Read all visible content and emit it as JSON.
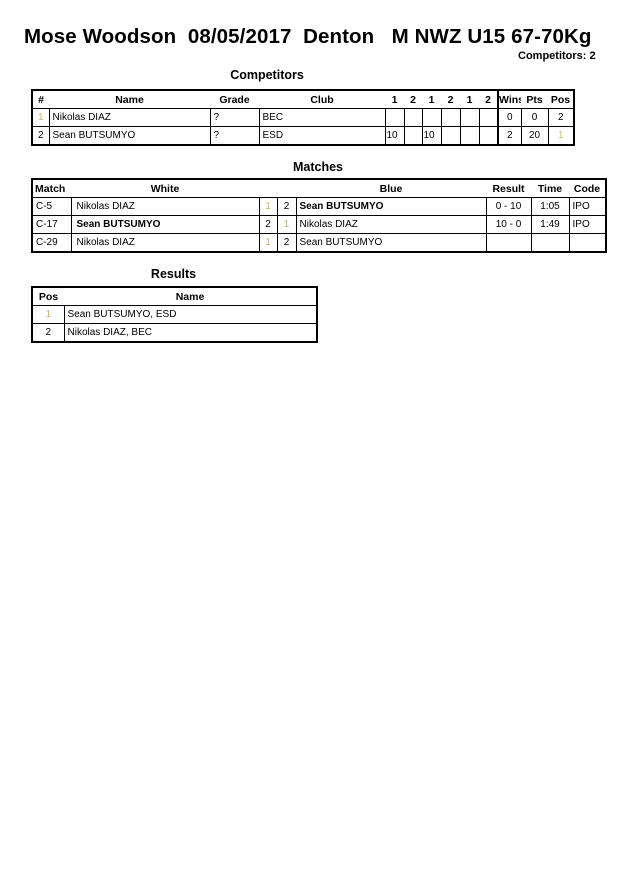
{
  "header": {
    "title": "Mose Woodson  08/05/2017  Denton   M NWZ U15 67-70Kg",
    "competitors_count": "Competitors: 2"
  },
  "competitors": {
    "title": "Competitors",
    "columns": [
      "#",
      "Name",
      "Grade",
      "Club",
      "1",
      "2",
      "1",
      "2",
      "1",
      "2",
      "Wins",
      "Pts",
      "Pos"
    ],
    "rows": [
      {
        "num": "1",
        "name": "Nikolas DIAZ",
        "grade": "?",
        "club": "BEC",
        "scores": [
          "",
          "",
          "",
          "",
          "",
          ""
        ],
        "wins": "0",
        "pts": "0",
        "pos": "2"
      },
      {
        "num": "2",
        "name": "Sean BUTSUMYO",
        "grade": "?",
        "club": "ESD",
        "scores": [
          "10",
          "",
          "10",
          "",
          "",
          ""
        ],
        "wins": "2",
        "pts": "20",
        "pos": "1"
      }
    ]
  },
  "matches": {
    "title": "Matches",
    "columns": {
      "match": "Match",
      "white": "White",
      "blue": "Blue",
      "result": "Result",
      "time": "Time",
      "code": "Code"
    },
    "rows": [
      {
        "match": "C-5",
        "white": "Nikolas DIAZ",
        "white_num": "1",
        "blue_num": "2",
        "blue": "Sean BUTSUMYO",
        "result": "0 - 10",
        "time": "1:05",
        "code": "IPO",
        "winner": "blue"
      },
      {
        "match": "C-17",
        "white": "Sean BUTSUMYO",
        "white_num": "2",
        "blue_num": "1",
        "blue": "Nikolas DIAZ",
        "result": "10 - 0",
        "time": "1:49",
        "code": "IPO",
        "winner": "white"
      },
      {
        "match": "C-29",
        "white": "Nikolas DIAZ",
        "white_num": "1",
        "blue_num": "2",
        "blue": "Sean BUTSUMYO",
        "result": "",
        "time": "",
        "code": "",
        "winner": ""
      }
    ]
  },
  "results": {
    "title": "Results",
    "columns": [
      "Pos",
      "Name"
    ],
    "rows": [
      {
        "pos": "1",
        "name": "Sean BUTSUMYO, ESD"
      },
      {
        "pos": "2",
        "name": "Nikolas DIAZ, BEC"
      }
    ]
  }
}
